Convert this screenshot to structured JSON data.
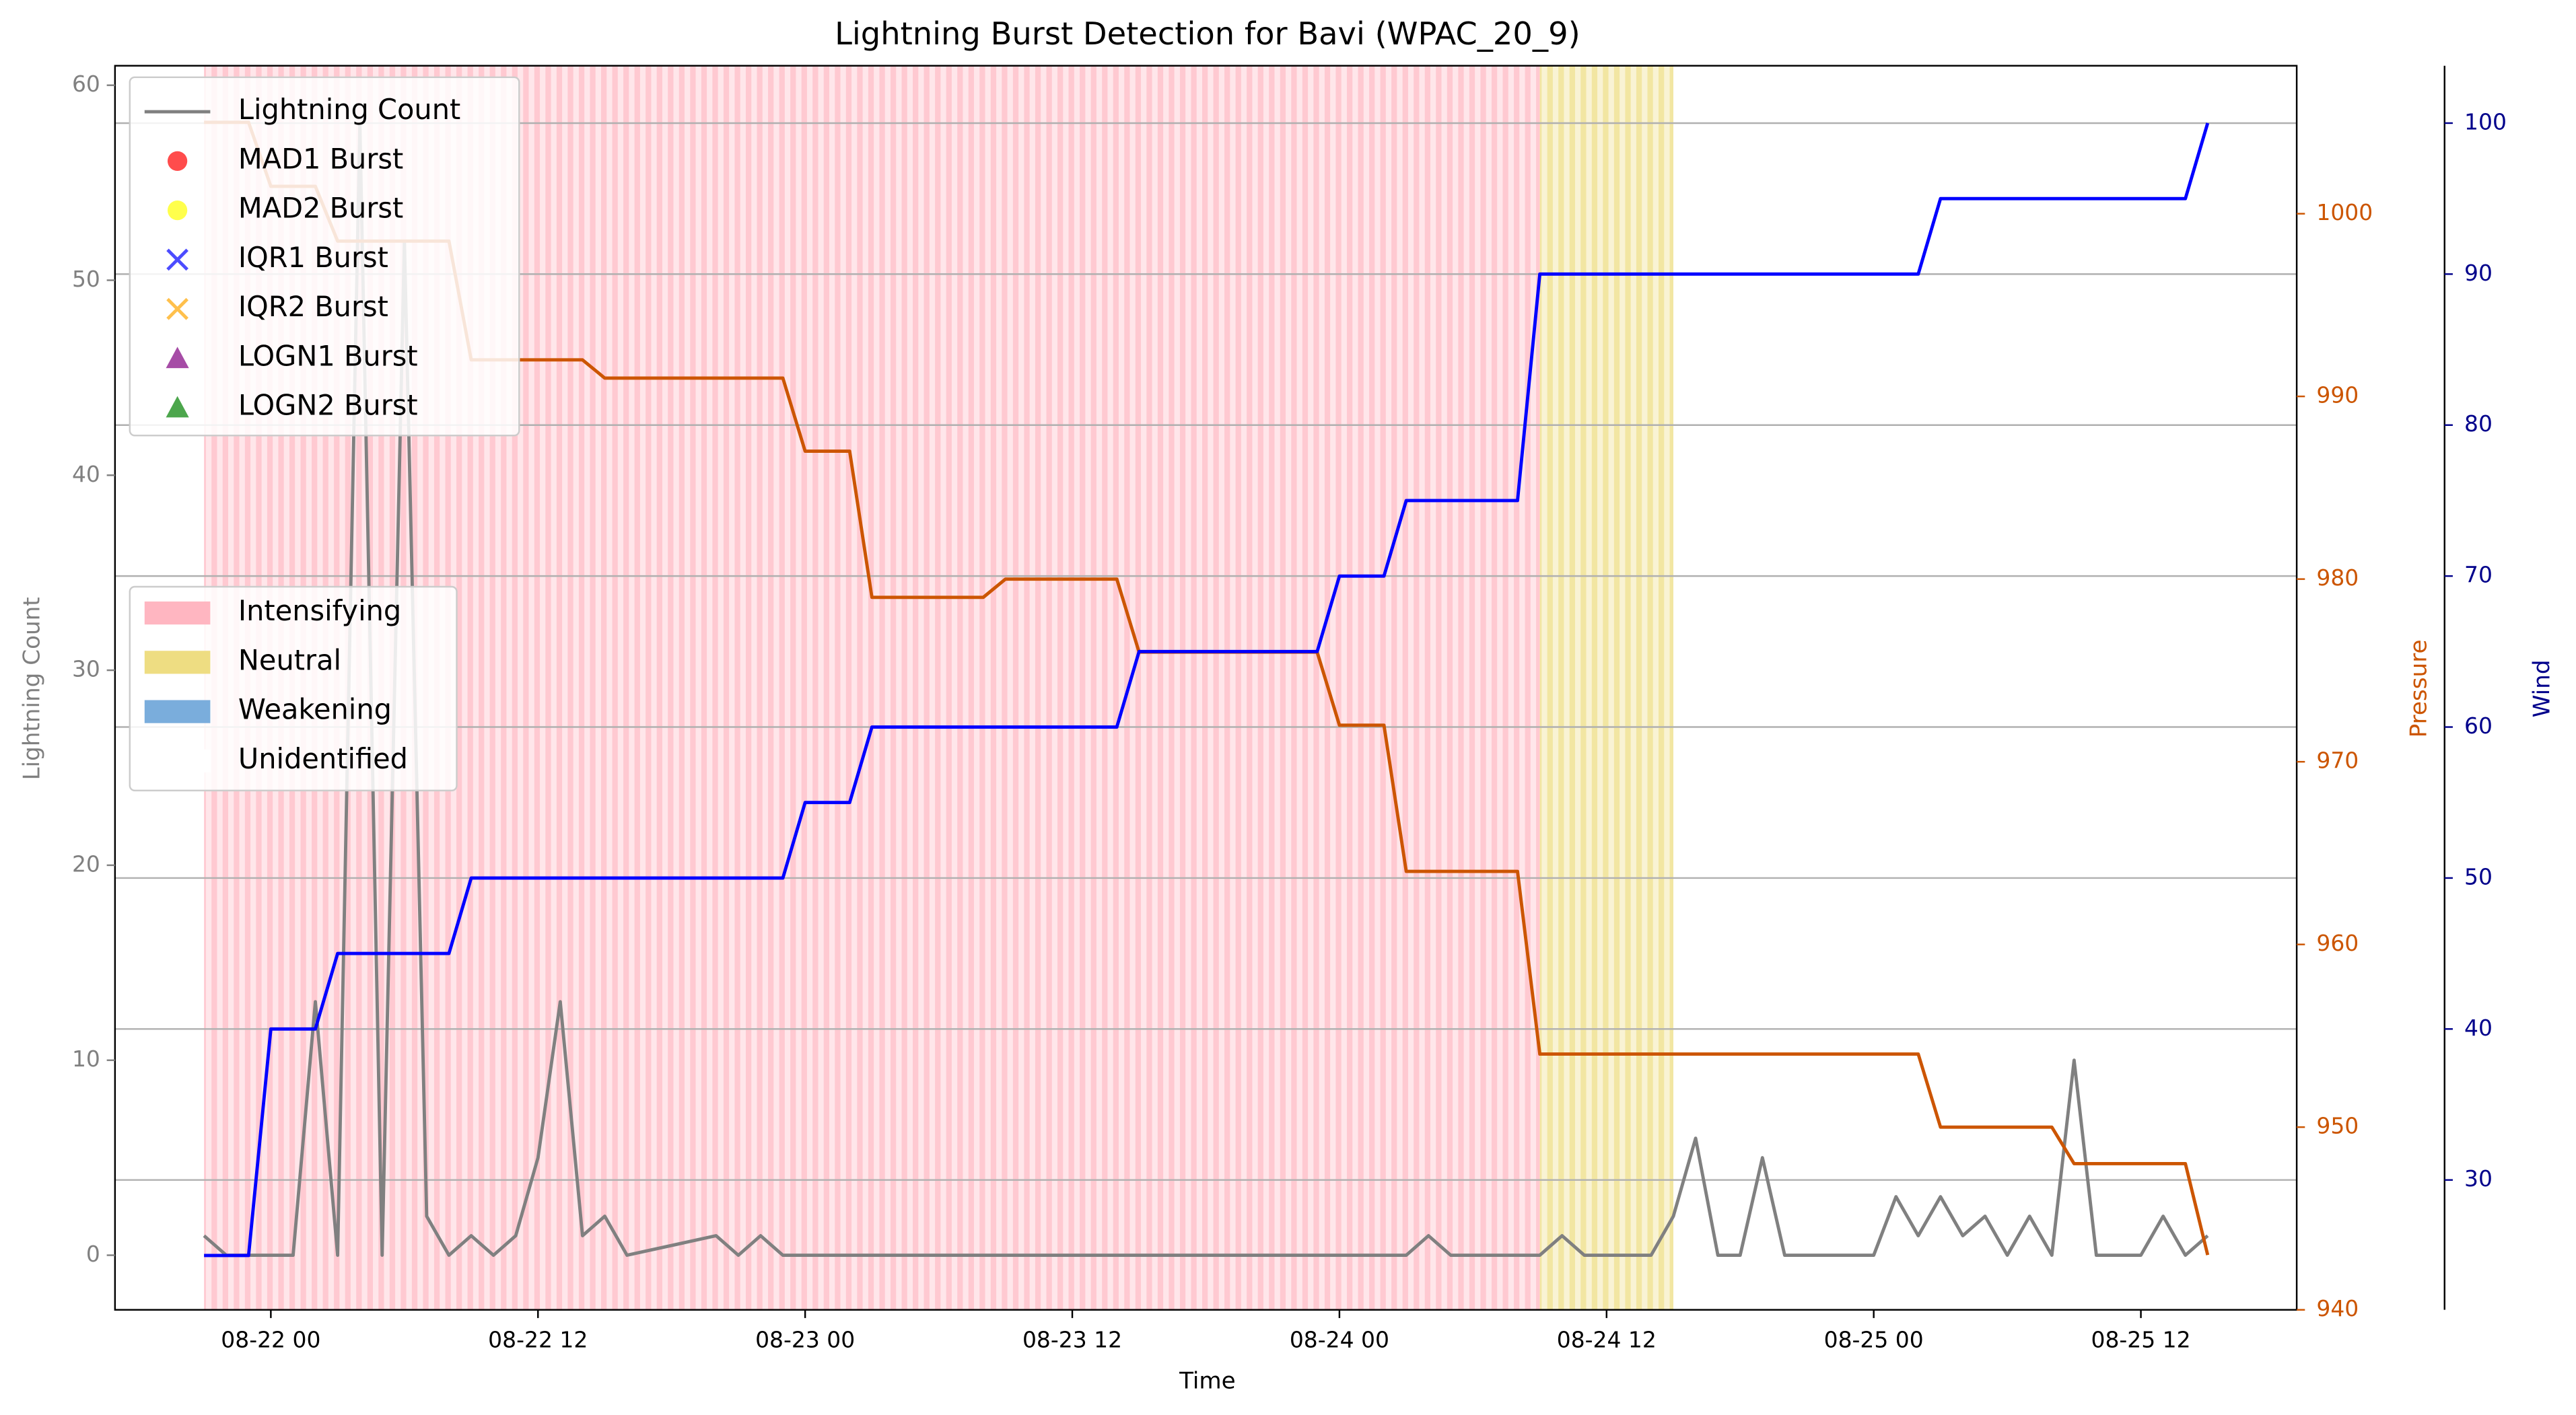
{
  "chart_data": {
    "type": "line",
    "title": "Lightning Burst Detection for Bavi (WPAC_20_9)",
    "xlabel": "Time",
    "ylabel": "Lightning Count",
    "y2label": "Pressure",
    "y3label": "Wind",
    "xlim": [
      "08-21 17",
      "08-25 19"
    ],
    "xticks": [
      "08-22 00",
      "08-22 12",
      "08-23 00",
      "08-23 12",
      "08-24 00",
      "08-24 12",
      "08-25 00",
      "08-25 12"
    ],
    "ylim": [
      -2.8,
      61.0
    ],
    "yticks": [
      0,
      10,
      20,
      30,
      40,
      50,
      60
    ],
    "y2lim": [
      940,
      1008.1
    ],
    "y2ticks": [
      940,
      950,
      960,
      970,
      980,
      990,
      1000
    ],
    "y2color": "#cc5500",
    "y3lim": [
      21.4,
      103.8
    ],
    "y3ticks": [
      30,
      40,
      50,
      60,
      70,
      80,
      90,
      100
    ],
    "y3color": "#00008b",
    "grid_axis": "y3",
    "series": [
      {
        "name": "Lightning Count",
        "color": "#808080",
        "axis": "y",
        "x": [
          "08-21 21",
          "08-21 22",
          "08-22 01",
          "08-22 02",
          "08-22 03",
          "08-22 04",
          "08-22 05",
          "08-22 06",
          "08-22 07",
          "08-22 08",
          "08-22 09",
          "08-22 10",
          "08-22 11",
          "08-22 12",
          "08-22 13",
          "08-22 14",
          "08-22 15",
          "08-22 16",
          "08-22 20",
          "08-22 21",
          "08-22 22",
          "08-22 23",
          "08-24 03",
          "08-24 04",
          "08-24 05",
          "08-24 09",
          "08-24 10",
          "08-24 11",
          "08-24 14",
          "08-24 15",
          "08-24 16",
          "08-24 17",
          "08-24 18",
          "08-24 19",
          "08-24 20",
          "08-25 00",
          "08-25 01",
          "08-25 02",
          "08-25 03",
          "08-25 04",
          "08-25 05",
          "08-25 06",
          "08-25 07",
          "08-25 08",
          "08-25 09",
          "08-25 10",
          "08-25 12",
          "08-25 13",
          "08-25 14",
          "08-25 15"
        ],
        "values": [
          1,
          0,
          0,
          13,
          0,
          58,
          0,
          52,
          2,
          0,
          1,
          0,
          1,
          5,
          13,
          1,
          2,
          0,
          1,
          0,
          1,
          0,
          0,
          1,
          0,
          0,
          1,
          0,
          0,
          2,
          6,
          0,
          0,
          5,
          0,
          0,
          3,
          1,
          3,
          1,
          2,
          0,
          2,
          0,
          10,
          0,
          0,
          2,
          0,
          1
        ]
      },
      {
        "color": "#cc5500",
        "axis": "y2",
        "x": [
          "08-21 21",
          "08-21 23",
          "08-22 00",
          "08-22 02",
          "08-22 03",
          "08-22 08",
          "08-22 09",
          "08-22 14",
          "08-22 15",
          "08-22 23",
          "08-23 00",
          "08-23 02",
          "08-23 03",
          "08-23 08",
          "08-23 09",
          "08-23 14",
          "08-23 15",
          "08-23 23",
          "08-24 00",
          "08-24 02",
          "08-24 03",
          "08-24 08",
          "08-24 09",
          "08-25 02",
          "08-25 03",
          "08-25 08",
          "08-25 09",
          "08-25 14",
          "08-25 15"
        ],
        "values": [
          1005,
          1005,
          1001.5,
          1001.5,
          998.5,
          998.5,
          992,
          992,
          991,
          991,
          987,
          987,
          979,
          979,
          980,
          980,
          976,
          976,
          972,
          972,
          964,
          964,
          954,
          954,
          950,
          950,
          948,
          948,
          943
        ]
      },
      {
        "color": "#0000ff",
        "axis": "y3",
        "x": [
          "08-21 21",
          "08-21 23",
          "08-22 00",
          "08-22 02",
          "08-22 03",
          "08-22 08",
          "08-22 09",
          "08-22 23",
          "08-23 00",
          "08-23 02",
          "08-23 03",
          "08-23 14",
          "08-23 15",
          "08-23 23",
          "08-24 00",
          "08-24 02",
          "08-24 03",
          "08-24 08",
          "08-24 09",
          "08-25 02",
          "08-25 03",
          "08-25 14",
          "08-25 15"
        ],
        "values": [
          25,
          25,
          40,
          40,
          45,
          45,
          50,
          50,
          55,
          55,
          60,
          60,
          65,
          65,
          70,
          70,
          75,
          75,
          90,
          90,
          95,
          95,
          100
        ]
      }
    ],
    "burst_legend": [
      {
        "name": "MAD1 Burst",
        "color": "#ff0000",
        "marker": "circle"
      },
      {
        "name": "MAD2 Burst",
        "color": "#ffff00",
        "marker": "circle"
      },
      {
        "name": "IQR1 Burst",
        "color": "#0000ff",
        "marker": "x"
      },
      {
        "name": "IQR2 Burst",
        "color": "#ffa500",
        "marker": "x"
      },
      {
        "name": "LOGN1 Burst",
        "color": "#800080",
        "marker": "triangle"
      },
      {
        "name": "LOGN2 Burst",
        "color": "#008000",
        "marker": "triangle"
      }
    ],
    "phases": [
      {
        "name": "Intensifying",
        "color": "#ffb6c1"
      },
      {
        "name": "Neutral",
        "color": "#eedd82"
      },
      {
        "name": "Weakening",
        "color": "#7aaddc"
      },
      {
        "name": "Unidentified",
        "color": "#ffffff"
      }
    ],
    "phase_spans": [
      {
        "name": "Intensifying",
        "start": "08-21 21",
        "end": "08-24 09"
      },
      {
        "name": "Neutral",
        "start": "08-24 09",
        "end": "08-24 15"
      }
    ]
  }
}
